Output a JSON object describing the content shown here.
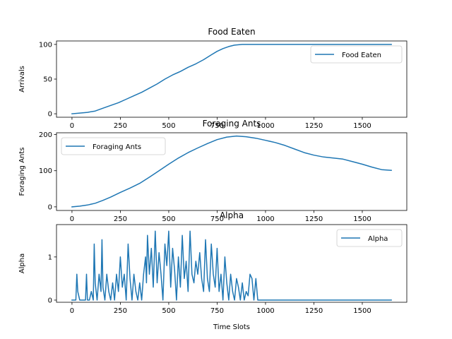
{
  "chart_data": [
    {
      "type": "line",
      "title": "Food Eaten",
      "xlabel": "",
      "ylabel": "Arrivals",
      "xlim": [
        -80,
        1730
      ],
      "ylim": [
        -5,
        105
      ],
      "xticks": [
        0,
        250,
        500,
        750,
        1000,
        1250,
        1500
      ],
      "yticks": [
        0,
        50,
        100
      ],
      "color": "#1f77b4",
      "legend_position": "upper right",
      "series": [
        {
          "name": "Food Eaten",
          "x": [
            0,
            40,
            80,
            120,
            160,
            200,
            240,
            280,
            320,
            360,
            400,
            440,
            480,
            520,
            560,
            600,
            640,
            680,
            720,
            750,
            780,
            810,
            840,
            880,
            920,
            960,
            1000,
            1100,
            1200,
            1300,
            1400,
            1500,
            1650
          ],
          "y": [
            0,
            1,
            2,
            4,
            8,
            12,
            16,
            21,
            26,
            31,
            37,
            43,
            50,
            56,
            61,
            67,
            72,
            78,
            85,
            90,
            94,
            97,
            99,
            100,
            100,
            100,
            100,
            100,
            100,
            100,
            100,
            100,
            100
          ]
        }
      ]
    },
    {
      "type": "line",
      "title": "Foraging Ants",
      "xlabel": "",
      "ylabel": "Foraging Ants",
      "xlim": [
        -80,
        1730
      ],
      "ylim": [
        -10,
        205
      ],
      "xticks": [
        0,
        250,
        500,
        750,
        1000,
        1250,
        1500
      ],
      "yticks": [
        0,
        100,
        200
      ],
      "color": "#1f77b4",
      "legend_position": "upper left",
      "series": [
        {
          "name": "Foraging Ants",
          "x": [
            0,
            40,
            80,
            120,
            160,
            200,
            250,
            300,
            350,
            400,
            450,
            500,
            550,
            600,
            650,
            700,
            750,
            800,
            850,
            900,
            950,
            1000,
            1050,
            1100,
            1150,
            1200,
            1250,
            1300,
            1350,
            1400,
            1450,
            1500,
            1550,
            1600,
            1650
          ],
          "y": [
            0,
            2,
            5,
            10,
            18,
            27,
            40,
            52,
            65,
            82,
            100,
            118,
            135,
            150,
            163,
            175,
            186,
            193,
            196,
            194,
            190,
            184,
            178,
            170,
            160,
            150,
            143,
            138,
            135,
            132,
            125,
            118,
            110,
            103,
            101
          ]
        }
      ]
    },
    {
      "type": "line",
      "title": "Alpha",
      "xlabel": "Time Slots",
      "ylabel": "Alpha",
      "xlim": [
        -80,
        1730
      ],
      "ylim": [
        -0.05,
        1.75
      ],
      "xticks": [
        0,
        250,
        500,
        750,
        1000,
        1250,
        1500
      ],
      "yticks": [
        0,
        1
      ],
      "color": "#1f77b4",
      "legend_position": "upper right",
      "series": [
        {
          "name": "Alpha",
          "x": [
            0,
            20,
            25,
            30,
            40,
            70,
            75,
            80,
            90,
            100,
            110,
            115,
            120,
            130,
            140,
            150,
            155,
            160,
            170,
            180,
            190,
            200,
            210,
            220,
            230,
            240,
            250,
            260,
            270,
            280,
            290,
            300,
            310,
            320,
            330,
            340,
            350,
            360,
            370,
            380,
            385,
            390,
            400,
            410,
            420,
            430,
            440,
            450,
            460,
            470,
            480,
            490,
            500,
            510,
            520,
            530,
            540,
            550,
            560,
            570,
            580,
            590,
            600,
            610,
            620,
            630,
            640,
            650,
            660,
            670,
            680,
            690,
            700,
            710,
            720,
            730,
            740,
            750,
            760,
            770,
            780,
            790,
            800,
            810,
            820,
            830,
            840,
            850,
            860,
            870,
            880,
            890,
            900,
            910,
            920,
            930,
            940,
            950,
            960,
            1000,
            1100,
            1200,
            1300,
            1400,
            1500,
            1650
          ],
          "y": [
            0,
            0,
            0.6,
            0.2,
            0,
            0,
            0.6,
            0,
            0,
            0.2,
            0,
            1.3,
            0.4,
            0,
            0.6,
            0.2,
            1.4,
            0.3,
            0,
            0.6,
            0.2,
            0,
            0.4,
            0,
            0.6,
            0.2,
            1.0,
            0.3,
            0.6,
            0,
            1.3,
            0.5,
            0,
            0.6,
            0.2,
            0,
            0.4,
            0,
            0.6,
            1.0,
            0.4,
            1.5,
            0.6,
            1.2,
            0.3,
            1.6,
            0.4,
            1.1,
            0.6,
            0,
            1.3,
            0.8,
            1.6,
            0.3,
            1.2,
            0.7,
            0,
            1.0,
            0.3,
            1.5,
            0.5,
            0.9,
            0.2,
            1.6,
            0.6,
            0.4,
            0.9,
            0.6,
            1.1,
            0.5,
            0.2,
            1.4,
            0.5,
            0.2,
            1.3,
            0.6,
            0.3,
            1.2,
            0.2,
            0.6,
            0,
            1.0,
            0.4,
            0,
            0.6,
            0.2,
            0,
            0.5,
            0.3,
            0,
            0.4,
            0,
            0.2,
            0.1,
            0.6,
            0.5,
            0,
            0.5,
            0,
            0,
            0,
            0,
            0,
            0,
            0,
            0
          ]
        }
      ]
    }
  ]
}
